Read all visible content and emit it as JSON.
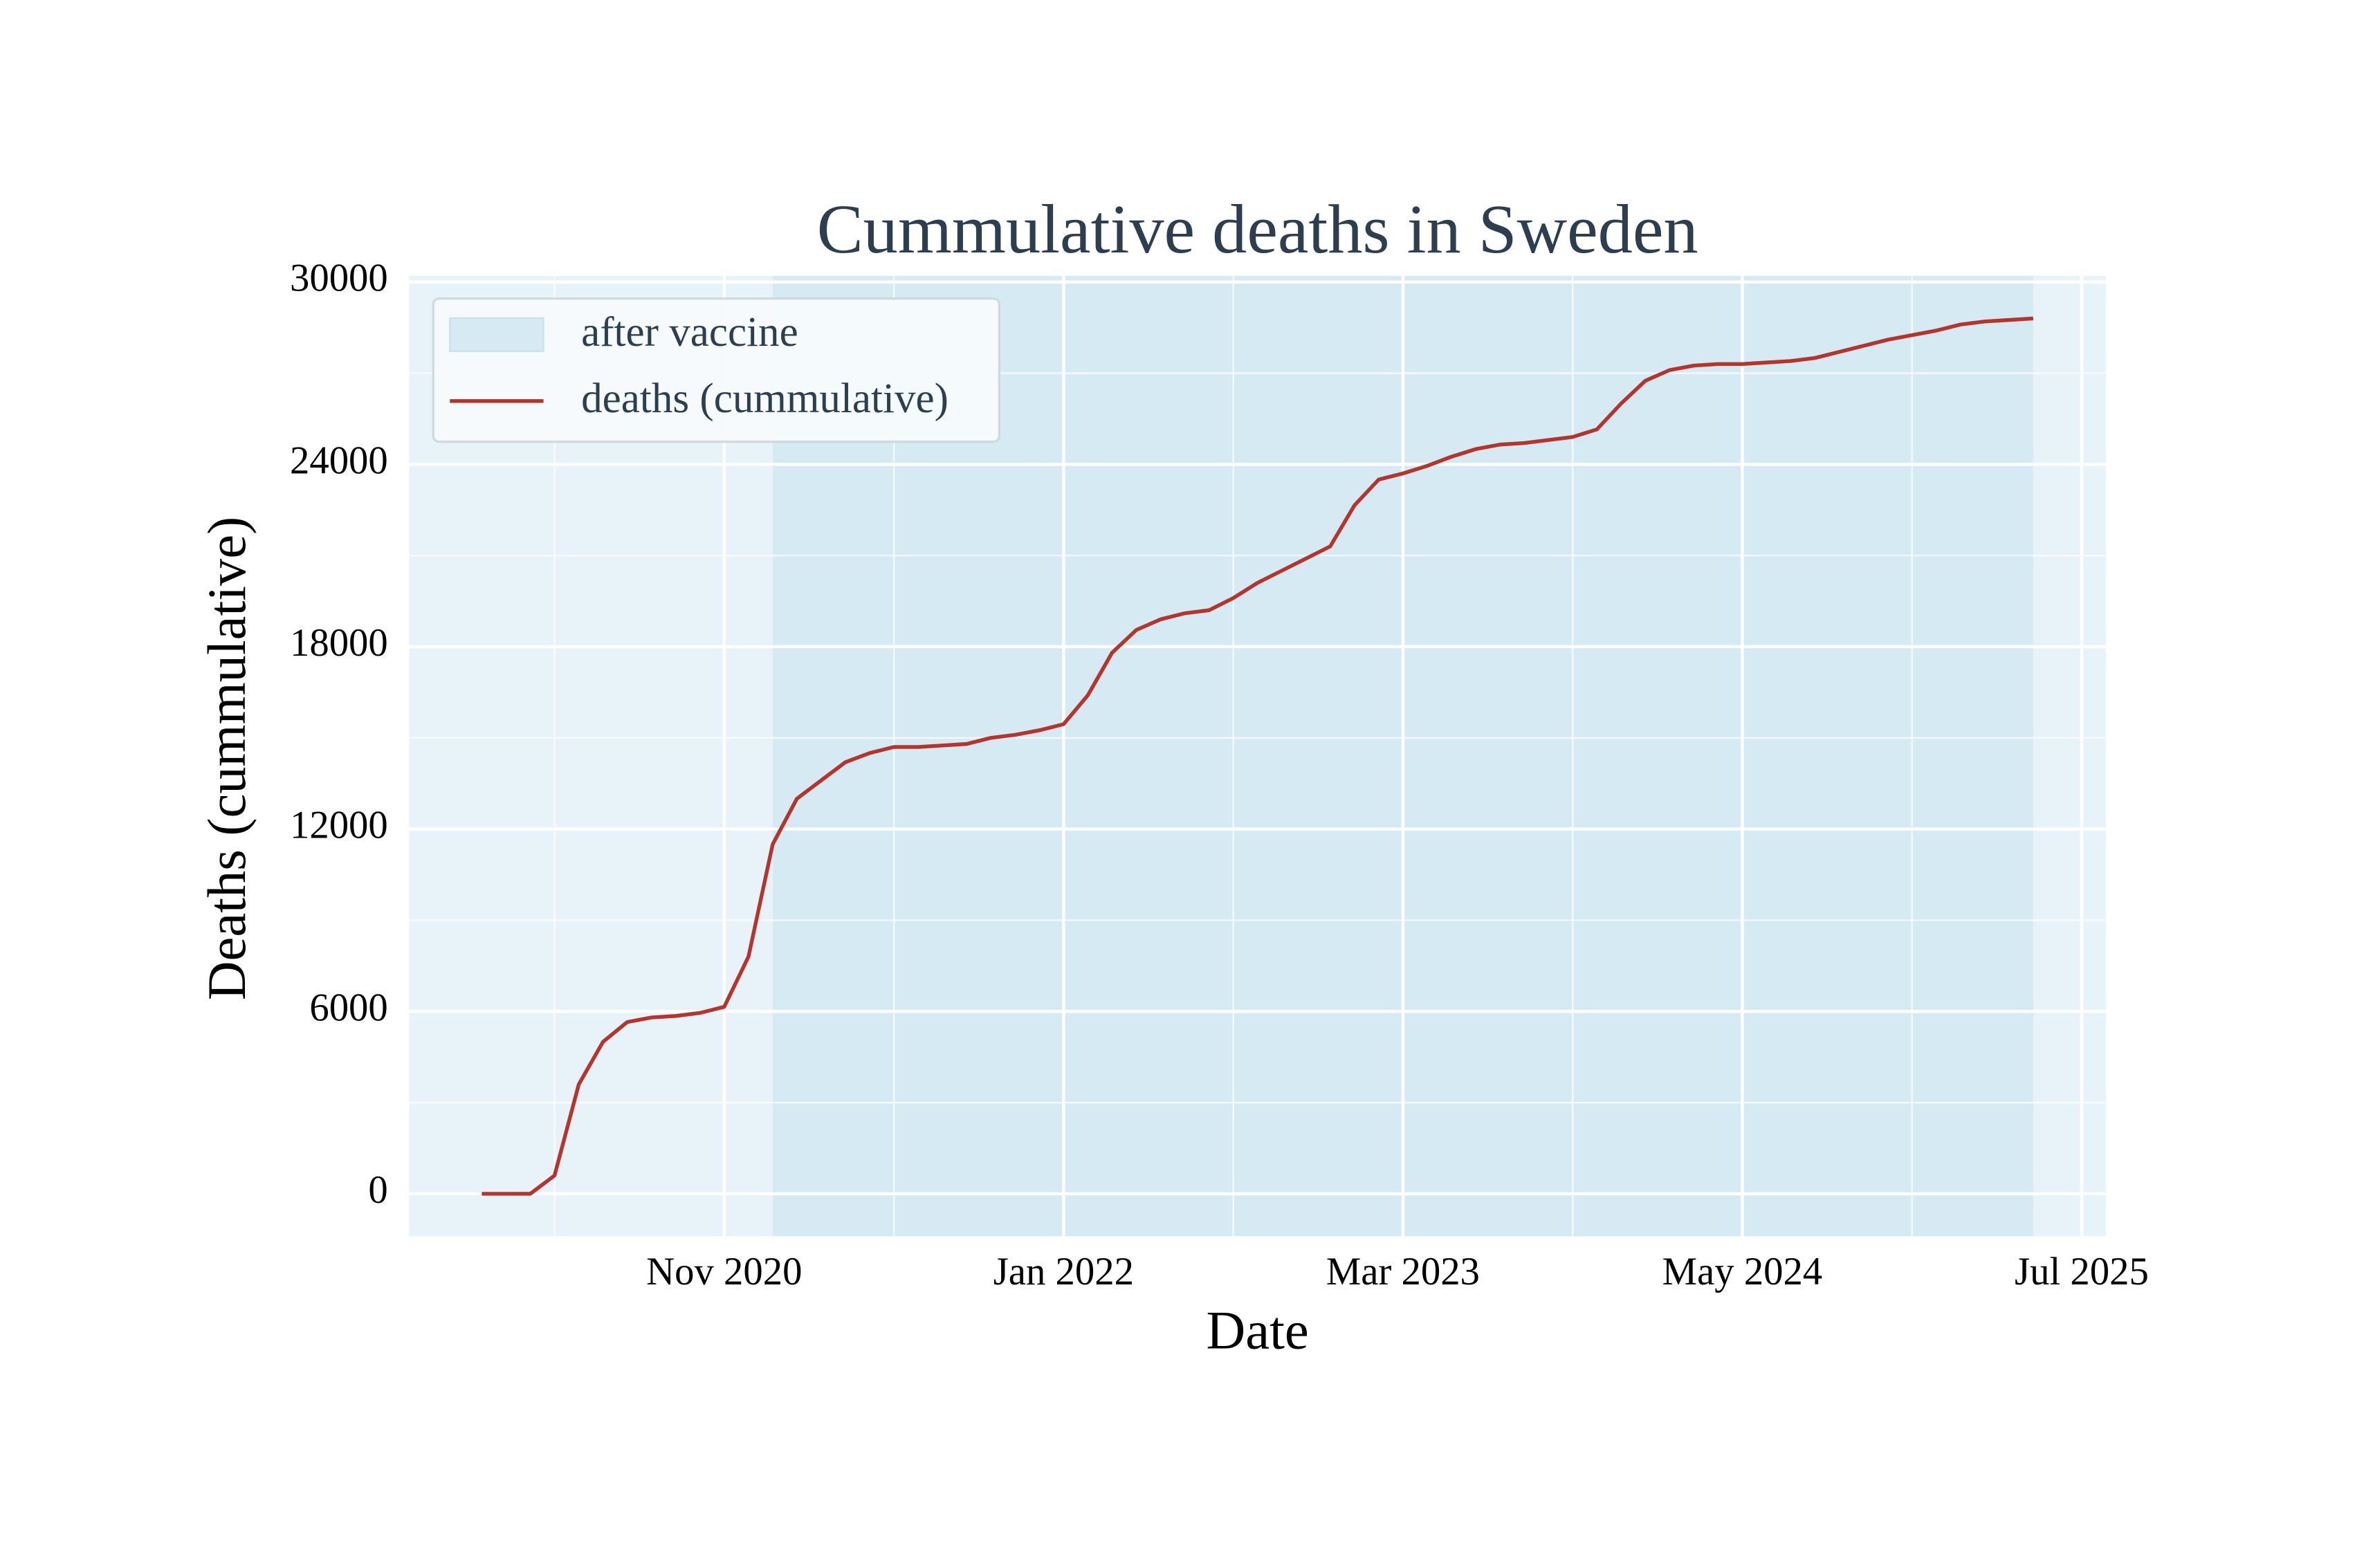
{
  "chart_data": {
    "type": "line",
    "title": "Cummulative deaths in Sweden",
    "xlabel": "Date",
    "ylabel": "Deaths (cummulative)",
    "x": [
      "2020-01",
      "2020-02",
      "2020-03",
      "2020-04",
      "2020-05",
      "2020-06",
      "2020-07",
      "2020-08",
      "2020-09",
      "2020-10",
      "2020-11",
      "2020-12",
      "2021-01",
      "2021-02",
      "2021-03",
      "2021-04",
      "2021-05",
      "2021-06",
      "2021-07",
      "2021-08",
      "2021-09",
      "2021-10",
      "2021-11",
      "2021-12",
      "2022-01",
      "2022-02",
      "2022-03",
      "2022-04",
      "2022-05",
      "2022-06",
      "2022-07",
      "2022-08",
      "2022-09",
      "2022-10",
      "2022-11",
      "2022-12",
      "2023-01",
      "2023-02",
      "2023-03",
      "2023-04",
      "2023-05",
      "2023-06",
      "2023-07",
      "2023-08",
      "2023-09",
      "2023-10",
      "2023-11",
      "2023-12",
      "2024-01",
      "2024-02",
      "2024-03",
      "2024-04",
      "2024-05",
      "2024-06",
      "2024-07",
      "2024-08",
      "2024-09",
      "2024-10",
      "2024-11",
      "2024-12",
      "2025-01",
      "2025-02",
      "2025-03",
      "2025-04",
      "2025-05"
    ],
    "series": [
      {
        "name": "deaths (cummulative)",
        "color": "#b5342b",
        "values": [
          0,
          0,
          0,
          600,
          3600,
          5000,
          5650,
          5800,
          5850,
          5950,
          6150,
          7800,
          11500,
          13000,
          13600,
          14200,
          14500,
          14700,
          14700,
          14750,
          14800,
          15000,
          15100,
          15250,
          15450,
          16400,
          17800,
          18550,
          18900,
          19100,
          19200,
          19600,
          20100,
          20500,
          20900,
          21300,
          22650,
          23500,
          23700,
          23950,
          24250,
          24500,
          24650,
          24700,
          24800,
          24900,
          25150,
          26000,
          26750,
          27100,
          27250,
          27300,
          27300,
          27350,
          27400,
          27500,
          27700,
          27900,
          28100,
          28250,
          28400,
          28600,
          28700,
          28750,
          28800
        ]
      }
    ],
    "shaded_span": {
      "name": "after vaccine",
      "x": [
        "2021-01",
        "2025-05"
      ],
      "color": "#d6eaf3"
    },
    "xlim": [
      "2019-10",
      "2025-08"
    ],
    "xticks": [
      {
        "value": "2020-11",
        "label": "Nov 2020"
      },
      {
        "value": "2022-01",
        "label": "Jan 2022"
      },
      {
        "value": "2023-03",
        "label": "Mar 2023"
      },
      {
        "value": "2024-05",
        "label": "May 2024"
      },
      {
        "value": "2025-07",
        "label": "Jul 2025"
      }
    ],
    "xminorticks": [
      "2020-04",
      "2021-06",
      "2022-08",
      "2023-10",
      "2024-12"
    ],
    "ylim": [
      -1400,
      30200
    ],
    "yticks": [
      0,
      6000,
      12000,
      18000,
      24000,
      30000
    ],
    "yminorticks": [
      3000,
      9000,
      15000,
      21000,
      27000
    ],
    "grid": true,
    "legend": "upper left",
    "plot_background": "#e8f3f9"
  }
}
